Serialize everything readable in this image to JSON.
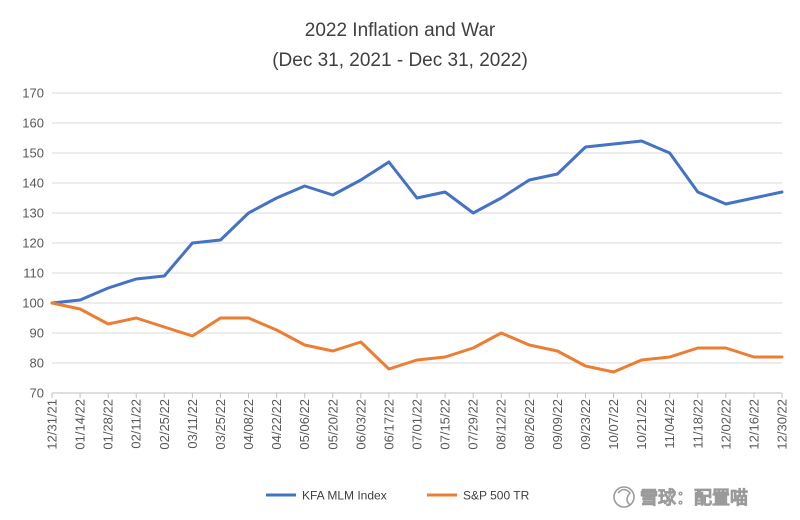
{
  "chart_data": {
    "type": "line",
    "title": "2022 Inflation and War",
    "subtitle": "(Dec 31, 2021 - Dec 31, 2022)",
    "xlabel": "",
    "ylabel": "",
    "ylim": [
      70,
      170
    ],
    "yticks": [
      70,
      80,
      90,
      100,
      110,
      120,
      130,
      140,
      150,
      160,
      170
    ],
    "x": [
      "12/31/21",
      "01/14/22",
      "01/28/22",
      "02/11/22",
      "02/25/22",
      "03/11/22",
      "03/25/22",
      "04/08/22",
      "04/22/22",
      "05/06/22",
      "05/20/22",
      "06/03/22",
      "06/17/22",
      "07/01/22",
      "07/15/22",
      "07/29/22",
      "08/12/22",
      "08/26/22",
      "09/09/22",
      "09/23/22",
      "10/07/22",
      "10/21/22",
      "11/04/22",
      "11/18/22",
      "12/02/22",
      "12/16/22",
      "12/30/22"
    ],
    "grid": "horizontal",
    "legend_position": "bottom",
    "series": [
      {
        "name": "KFA MLM Index",
        "color": "#4472C4",
        "values": [
          100,
          101,
          105,
          108,
          109,
          120,
          121,
          130,
          135,
          139,
          136,
          141,
          147,
          135,
          137,
          130,
          135,
          141,
          143,
          152,
          153,
          154,
          150,
          137,
          133,
          135,
          137
        ]
      },
      {
        "name": "S&P 500 TR",
        "color": "#ED7D31",
        "values": [
          100,
          98,
          93,
          95,
          92,
          89,
          95,
          95,
          91,
          86,
          84,
          87,
          78,
          81,
          82,
          85,
          90,
          86,
          84,
          79,
          77,
          81,
          82,
          85,
          85,
          82,
          82
        ]
      }
    ]
  },
  "watermark": {
    "text": "雪球：配置喵"
  }
}
